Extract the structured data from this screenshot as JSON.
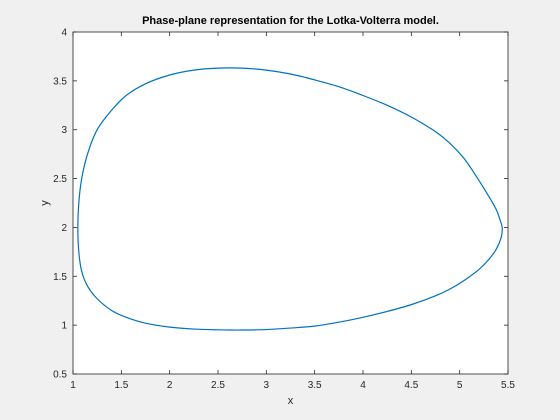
{
  "chart_data": {
    "type": "line",
    "title": "Phase-plane representation for the Lotka-Volterra model.",
    "xlabel": "x",
    "ylabel": "y",
    "xlim": [
      1,
      5.5
    ],
    "ylim": [
      0.5,
      4
    ],
    "xticks": [
      1,
      1.5,
      2,
      2.5,
      3,
      3.5,
      4,
      4.5,
      5,
      5.5
    ],
    "xtick_labels": [
      "1",
      "1.5",
      "2",
      "2.5",
      "3",
      "3.5",
      "4",
      "4.5",
      "5",
      "5.5"
    ],
    "yticks": [
      0.5,
      1,
      1.5,
      2,
      2.5,
      3,
      3.5,
      4
    ],
    "ytick_labels": [
      "0.5",
      "1",
      "1.5",
      "2",
      "2.5",
      "3",
      "3.5",
      "4"
    ],
    "grid": false,
    "legend": "none",
    "colors": {
      "line": "#0072bd",
      "axes": "#262626",
      "plot_background": "#ffffff",
      "figure_background": "#f0f0f0"
    },
    "series": [
      {
        "x": [
          1.05,
          1.06,
          1.09,
          1.15,
          1.25,
          1.4,
          1.55,
          1.75,
          2.0,
          2.25,
          2.5,
          2.75,
          3.0,
          3.25,
          3.5,
          3.75,
          4.0,
          4.25,
          4.5,
          4.75,
          4.9,
          5.05,
          5.2,
          5.3,
          5.38,
          5.42,
          5.44,
          5.43,
          5.38,
          5.3,
          5.2,
          5.05,
          4.9,
          4.75,
          4.5,
          4.25,
          4.0,
          3.75,
          3.5,
          3.25,
          3.0,
          2.75,
          2.65,
          2.5,
          2.25,
          2.0,
          1.75,
          1.55,
          1.4,
          1.25,
          1.15,
          1.09,
          1.06,
          1.05
        ],
        "y": [
          2.0,
          2.25,
          2.5,
          2.75,
          3.0,
          3.2,
          3.35,
          3.47,
          3.56,
          3.61,
          3.63,
          3.63,
          3.61,
          3.57,
          3.51,
          3.44,
          3.35,
          3.25,
          3.13,
          2.98,
          2.86,
          2.7,
          2.48,
          2.32,
          2.18,
          2.07,
          2.0,
          1.9,
          1.78,
          1.67,
          1.57,
          1.46,
          1.37,
          1.3,
          1.21,
          1.14,
          1.08,
          1.03,
          0.99,
          0.97,
          0.955,
          0.95,
          0.95,
          0.952,
          0.96,
          0.98,
          1.02,
          1.08,
          1.15,
          1.27,
          1.4,
          1.55,
          1.75,
          2.0
        ]
      }
    ]
  }
}
